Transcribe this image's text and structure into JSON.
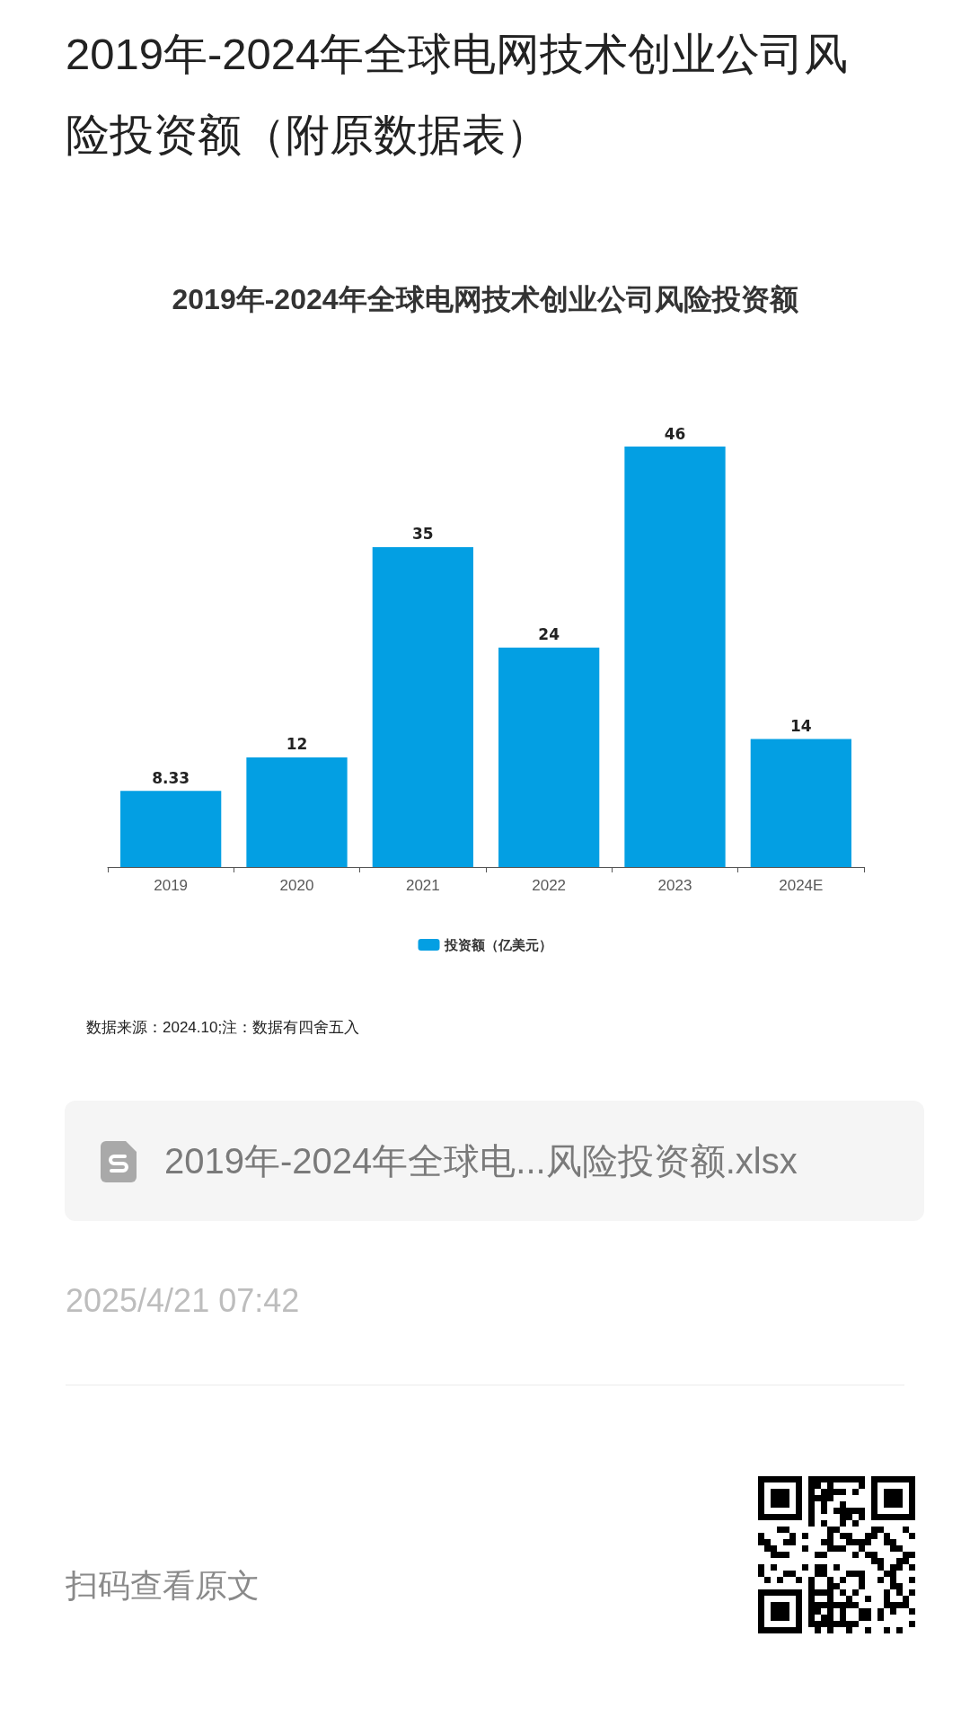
{
  "chart_data": {
    "type": "bar",
    "title": "2019年-2024年全球电网技术创业公司风险投资额（附原数据表）",
    "subtitle": "2019年-2024年全球电网技术创业公司风险投资额",
    "categories": [
      "2019",
      "2020",
      "2021",
      "2022",
      "2023",
      "2024E"
    ],
    "series": [
      {
        "name": "投资额（亿美元）",
        "color": "#039fe3",
        "values": [
          8.33,
          12,
          35,
          24,
          46,
          14
        ]
      }
    ],
    "data_labels": true,
    "legend": "bottom",
    "tick_labels": "x",
    "annotations": [
      "数据来源：2024.10;注：数据有四舍五入",
      "2019年-2024年全球电...风险投资额.xlsx",
      "2025/4/21 07:42",
      "扫码查看原文"
    ]
  }
}
